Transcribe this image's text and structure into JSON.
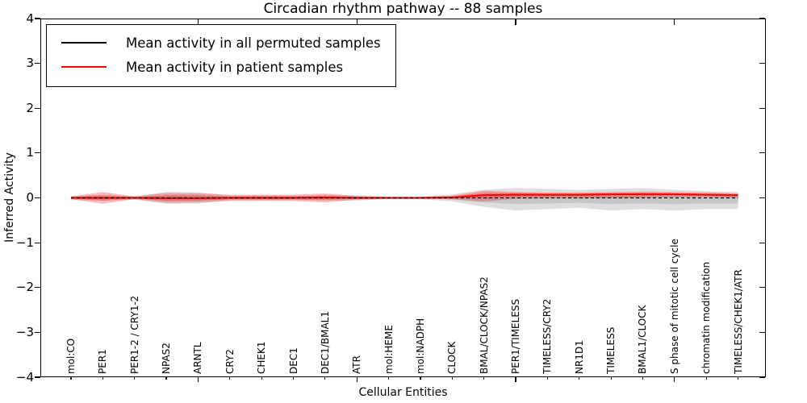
{
  "chart_data": {
    "type": "area",
    "title": "Circadian rhythm pathway -- 88 samples",
    "xlabel": "Cellular Entities",
    "ylabel": "Inferred Activity",
    "ylim": [
      -4,
      4
    ],
    "grid": false,
    "legend_position": "upper left",
    "ytick_labels": [
      "4",
      "3",
      "2",
      "1",
      "0",
      "−1",
      "−2",
      "−3",
      "−4"
    ],
    "major_x_tick_indices": [
      4,
      9,
      14,
      19
    ],
    "categories": [
      "mol:CO",
      "PER1",
      "PER1-2 / CRY1-2",
      "NPAS2",
      "ARNTL",
      "CRY2",
      "CHEK1",
      "DEC1",
      "DEC1/BMAL1",
      "ATR",
      "mol:HEME",
      "mol:NADPH",
      "CLOCK",
      "BMAL/CLOCK/NPAS2",
      "PER1/TIMELESS",
      "TIMELESS/CRY2",
      "NR1D1",
      "TIMELESS",
      "BMAL1/CLOCK",
      "S phase of mitotic cell cycle",
      "chromatin modification",
      "TIMELESS/CHEK1/ATR"
    ],
    "series": [
      {
        "name": "Mean activity in all permuted samples",
        "color": "#000000",
        "style": "dashed",
        "values": [
          0,
          0,
          0,
          0,
          0,
          0,
          0,
          0,
          0,
          0,
          0,
          0,
          0,
          0,
          0,
          0,
          0,
          0,
          0,
          0,
          0,
          0
        ]
      },
      {
        "name": "Mean activity in patient samples",
        "color": "#ff0000",
        "style": "solid",
        "values": [
          0,
          0,
          0,
          -0.01,
          -0.01,
          0,
          0,
          0,
          0.01,
          0,
          0,
          0,
          0.01,
          0.06,
          0.07,
          0.07,
          0.07,
          0.08,
          0.08,
          0.08,
          0.07,
          0.06
        ]
      }
    ],
    "bands": [
      {
        "name": "permuted-range",
        "color_rgb": "0,0,0",
        "alpha": 0.13,
        "upper": [
          0.05,
          0.06,
          0.04,
          0.13,
          0.13,
          0.05,
          0.05,
          0.05,
          0.06,
          0.06,
          0.03,
          0.03,
          0.08,
          0.18,
          0.22,
          0.2,
          0.18,
          0.2,
          0.22,
          0.18,
          0.15,
          0.13
        ],
        "lower": [
          -0.05,
          -0.06,
          -0.04,
          -0.13,
          -0.13,
          -0.05,
          -0.05,
          -0.05,
          -0.06,
          -0.06,
          -0.03,
          -0.03,
          -0.08,
          -0.2,
          -0.28,
          -0.25,
          -0.22,
          -0.28,
          -0.25,
          -0.28,
          -0.25,
          -0.25
        ]
      },
      {
        "name": "patient-range",
        "color_rgb": "255,0,0",
        "alpha": 0.27,
        "upper": [
          0.03,
          0.13,
          0.03,
          0.11,
          0.1,
          0.07,
          0.07,
          0.07,
          0.1,
          0.04,
          0.02,
          0.02,
          0.05,
          0.16,
          0.13,
          0.12,
          0.12,
          0.13,
          0.14,
          0.13,
          0.12,
          0.1
        ],
        "lower": [
          -0.03,
          -0.13,
          -0.03,
          -0.11,
          -0.1,
          -0.07,
          -0.07,
          -0.07,
          -0.1,
          -0.04,
          -0.02,
          -0.02,
          -0.03,
          -0.08,
          -0.02,
          -0.01,
          -0.01,
          -0.01,
          0.0,
          0.02,
          0.02,
          0.0
        ]
      }
    ]
  }
}
